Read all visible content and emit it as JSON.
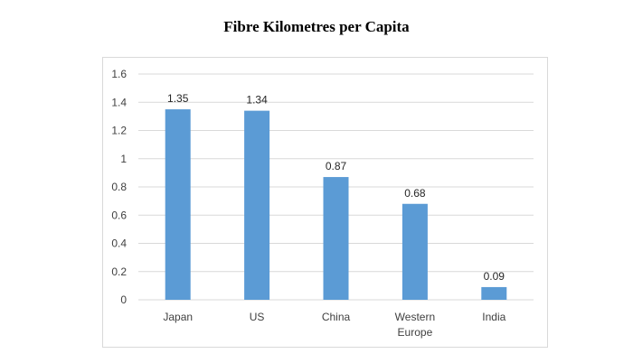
{
  "chart_data": {
    "type": "bar",
    "title": "Fibre Kilometres per Capita",
    "xlabel": "",
    "ylabel": "",
    "categories": [
      [
        "Japan"
      ],
      [
        "US"
      ],
      [
        "China"
      ],
      [
        "Western",
        "Europe"
      ],
      [
        "India"
      ]
    ],
    "values": [
      1.35,
      1.34,
      0.87,
      0.68,
      0.09
    ],
    "data_labels": [
      "1.35",
      "1.34",
      "0.87",
      "0.68",
      "0.09"
    ],
    "ylim": [
      0,
      1.6
    ],
    "yticks": [
      0,
      0.2,
      0.4,
      0.6,
      0.8,
      1,
      1.2,
      1.4,
      1.6
    ],
    "ytick_labels": [
      "0",
      "0.2",
      "0.4",
      "0.6",
      "0.8",
      "1",
      "1.2",
      "1.4",
      "1.6"
    ],
    "grid": true,
    "legend": "none",
    "bar_color": "#5b9bd5",
    "grid_color": "#d9d9d9"
  }
}
